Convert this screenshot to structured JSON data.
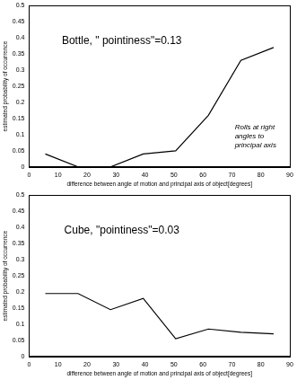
{
  "chart_data": [
    {
      "type": "line",
      "title": "Bottle, \" pointiness\"=0.13",
      "annotation": "Rolls at right\nangles to\nprincipal axis",
      "x_label": "difference between angle of motion and principal axis of object[degrees]",
      "y_label": "estimated probability of occurrence",
      "x": [
        5.6,
        16.9,
        28.1,
        39.4,
        50.6,
        61.9,
        73.1,
        84.4
      ],
      "values": [
        0.04,
        0.0,
        0.0,
        0.04,
        0.05,
        0.16,
        0.33,
        0.37
      ],
      "color": "#000000",
      "xlim": [
        0,
        90
      ],
      "xticks": [
        0,
        10,
        20,
        30,
        40,
        50,
        60,
        70,
        80,
        90
      ],
      "ylim": [
        0,
        0.5
      ],
      "yticks": [
        0,
        0.05,
        0.1,
        0.15,
        0.2,
        0.25,
        0.3,
        0.35,
        0.4,
        0.45,
        0.5
      ],
      "grid": false
    },
    {
      "type": "line",
      "title": "Cube, \"pointiness\"=0.03",
      "x_label": "difference between angle of motion and principal axis of object[degrees]",
      "y_label": "estimated probability of occurrence",
      "x": [
        5.6,
        16.9,
        28.1,
        39.4,
        50.6,
        61.9,
        73.1,
        84.4
      ],
      "values": [
        0.195,
        0.195,
        0.145,
        0.18,
        0.055,
        0.085,
        0.075,
        0.07
      ],
      "color": "#000000",
      "xlim": [
        0,
        90
      ],
      "xticks": [
        0,
        10,
        20,
        30,
        40,
        50,
        60,
        70,
        80,
        90
      ],
      "ylim": [
        0,
        0.5
      ],
      "yticks": [
        0,
        0.05,
        0.1,
        0.15,
        0.2,
        0.25,
        0.3,
        0.35,
        0.4,
        0.45,
        0.5
      ],
      "grid": false
    }
  ]
}
